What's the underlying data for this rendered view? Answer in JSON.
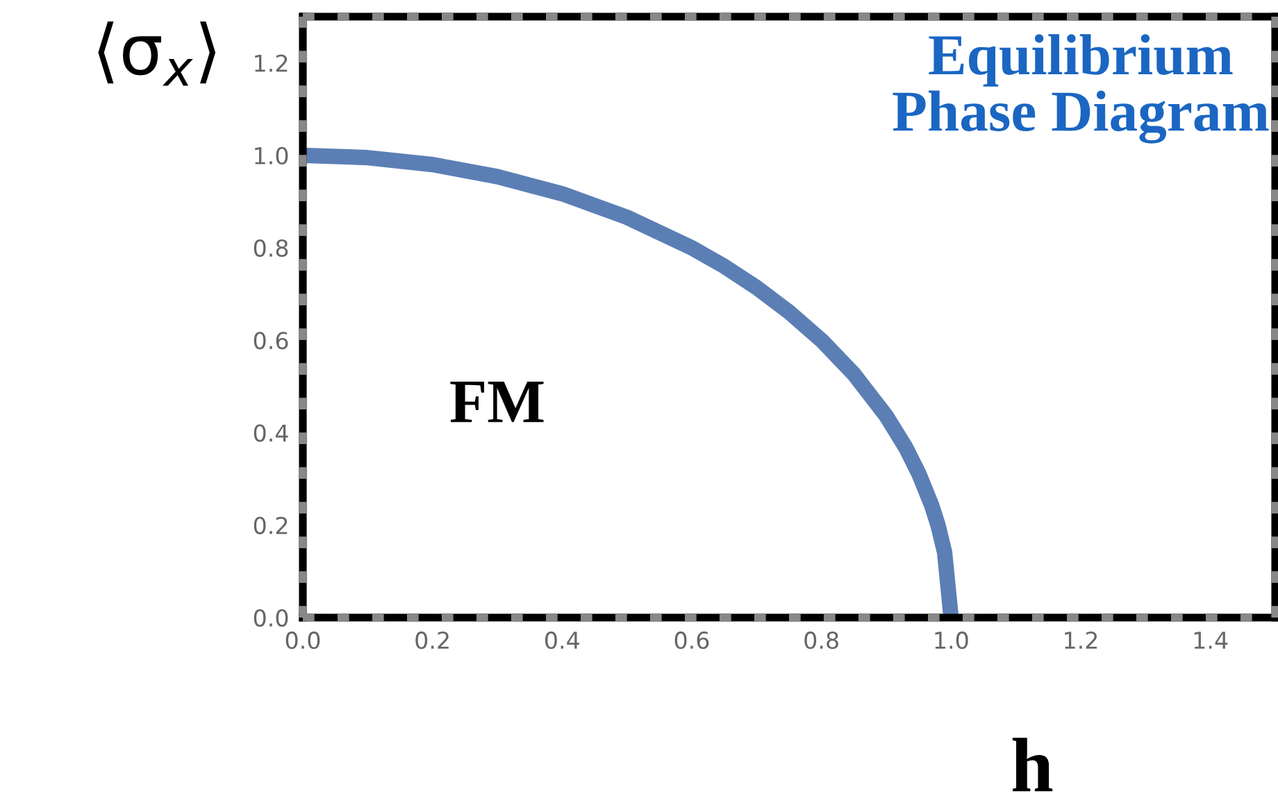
{
  "chart_data": {
    "type": "line",
    "xlabel": "h",
    "ylabel": "⟨σ$_{x}$⟩",
    "annotations": [
      "Equilibrium\nPhase Diagram",
      "FM"
    ],
    "x": [
      0,
      0.1,
      0.2,
      0.3,
      0.4,
      0.5,
      0.6,
      0.65,
      0.7,
      0.75,
      0.8,
      0.85,
      0.9,
      0.93,
      0.95,
      0.97,
      0.98,
      0.99,
      1.0
    ],
    "series": [
      {
        "color": "#5b7fb5",
        "values": [
          1.0,
          0.995,
          0.98,
          0.954,
          0.917,
          0.866,
          0.8,
          0.76,
          0.714,
          0.661,
          0.6,
          0.527,
          0.436,
          0.368,
          0.312,
          0.243,
          0.199,
          0.141,
          0.0
        ]
      }
    ],
    "xlim": [
      0,
      1.5
    ],
    "ylim": [
      0,
      1.3
    ],
    "xticks": [
      {
        "value": 0,
        "label": "0.0"
      },
      0.2,
      0.4,
      0.6,
      0.8,
      {
        "value": 1,
        "label": "1.0"
      },
      1.2,
      1.4
    ],
    "yticks": [
      {
        "value": 0,
        "label": "0.0"
      },
      0.2,
      0.4,
      0.6,
      0.8,
      {
        "value": 1,
        "label": "1.0"
      },
      1.2
    ],
    "grid": false,
    "legend": false,
    "marker": "none",
    "line_style": "solid"
  }
}
